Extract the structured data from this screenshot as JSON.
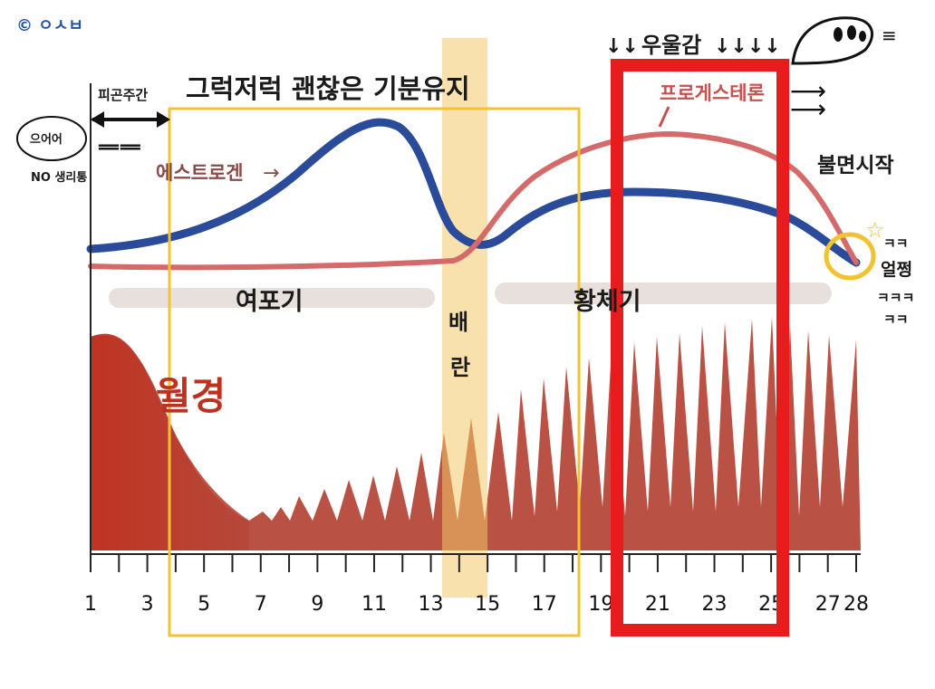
{
  "credit": "© ㅇㅅㅂ",
  "top": {
    "pms_period_label": "피곤주간",
    "mood_keep_label": "그럭저럭 괜찮은 기분유지",
    "depression_label": "우울감",
    "insomnia_label": "불면시작",
    "irritation_label": "ㅋㅋ 얼쩡 ㅋㅋㅋ ㅋㅋ"
  },
  "notes": {
    "left_speech": "으어어",
    "no_period_pain": "NO 생리통",
    "estrogen_label": "에스트로겐",
    "progesterone_label": "프로게스테론"
  },
  "phases": {
    "follicular": "여포기",
    "ovulation": "배란",
    "luteal": "황체기",
    "menstruation": "월경"
  },
  "axis": {
    "day_labels": [
      "1",
      "3",
      "5",
      "7",
      "9",
      "11",
      "13",
      "15",
      "17",
      "19",
      "21",
      "23",
      "25",
      "27",
      "28"
    ]
  },
  "colors": {
    "estrogen": "#2a4a9a",
    "progesterone": "#d46a6a",
    "lining": "#b5483a",
    "menstruation": "#c0301e",
    "ovulation_band": "#f2c96a",
    "mood_box": "#f2c230",
    "pms_box": "#e81c1c"
  }
}
